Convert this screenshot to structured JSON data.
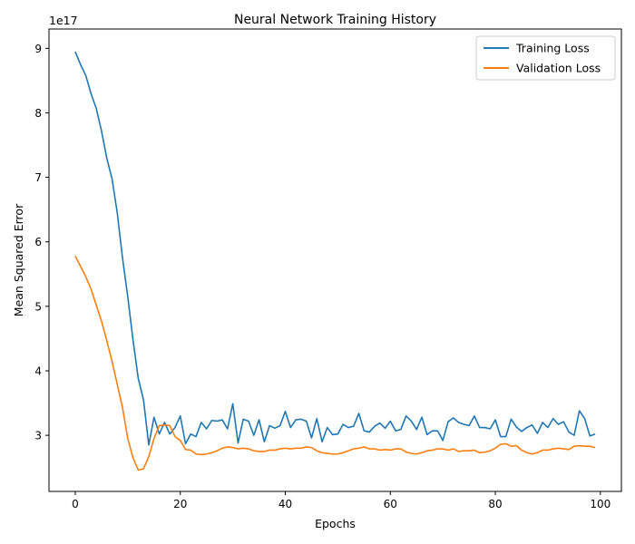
{
  "chart_data": {
    "type": "line",
    "title": "Neural Network Training History",
    "xlabel": "Epochs",
    "ylabel": "Mean Squared Error",
    "y_offset_label": "1e17",
    "y_scale": 1e+17,
    "xlim": [
      -5,
      104
    ],
    "ylim": [
      2.13,
      9.3
    ],
    "xticks": [
      0,
      20,
      40,
      60,
      80,
      100
    ],
    "yticks": [
      3,
      4,
      5,
      6,
      7,
      8,
      9
    ],
    "grid": false,
    "legend_position": "top-right",
    "x": [
      0,
      1,
      2,
      3,
      4,
      5,
      6,
      7,
      8,
      9,
      10,
      11,
      12,
      13,
      14,
      15,
      16,
      17,
      18,
      19,
      20,
      21,
      22,
      23,
      24,
      25,
      26,
      27,
      28,
      29,
      30,
      31,
      32,
      33,
      34,
      35,
      36,
      37,
      38,
      39,
      40,
      41,
      42,
      43,
      44,
      45,
      46,
      47,
      48,
      49,
      50,
      51,
      52,
      53,
      54,
      55,
      56,
      57,
      58,
      59,
      60,
      61,
      62,
      63,
      64,
      65,
      66,
      67,
      68,
      69,
      70,
      71,
      72,
      73,
      74,
      75,
      76,
      77,
      78,
      79,
      80,
      81,
      82,
      83,
      84,
      85,
      86,
      87,
      88,
      89,
      90,
      91,
      92,
      93,
      94,
      95,
      96,
      97,
      98,
      99
    ],
    "series": [
      {
        "name": "Training Loss",
        "color": "#1f77b4",
        "values": [
          8.95,
          8.75,
          8.58,
          8.3,
          8.07,
          7.72,
          7.3,
          6.98,
          6.45,
          5.75,
          5.15,
          4.48,
          3.88,
          3.55,
          2.85,
          3.28,
          3.02,
          3.2,
          3.02,
          3.12,
          3.3,
          2.87,
          3.02,
          2.98,
          3.2,
          3.1,
          3.23,
          3.22,
          3.24,
          3.1,
          3.49,
          2.88,
          3.25,
          3.22,
          3.0,
          3.24,
          2.9,
          3.15,
          3.11,
          3.15,
          3.37,
          3.12,
          3.24,
          3.25,
          3.22,
          2.96,
          3.26,
          2.9,
          3.12,
          3.01,
          3.02,
          3.17,
          3.12,
          3.14,
          3.34,
          3.07,
          3.05,
          3.14,
          3.19,
          3.11,
          3.22,
          3.07,
          3.09,
          3.3,
          3.22,
          3.09,
          3.28,
          3.01,
          3.07,
          3.07,
          2.92,
          3.21,
          3.27,
          3.2,
          3.17,
          3.15,
          3.3,
          3.12,
          3.12,
          3.1,
          3.24,
          2.98,
          2.98,
          3.25,
          3.13,
          3.06,
          3.12,
          3.16,
          3.03,
          3.2,
          3.12,
          3.26,
          3.17,
          3.21,
          3.05,
          3.0,
          3.38,
          3.26,
          2.99,
          3.02
        ]
      },
      {
        "name": "Validation Loss",
        "color": "#ff7f0e",
        "values": [
          5.78,
          5.62,
          5.46,
          5.27,
          5.02,
          4.77,
          4.47,
          4.15,
          3.79,
          3.43,
          2.95,
          2.65,
          2.46,
          2.48,
          2.67,
          2.95,
          3.15,
          3.16,
          3.15,
          2.98,
          2.92,
          2.78,
          2.77,
          2.71,
          2.7,
          2.71,
          2.73,
          2.76,
          2.8,
          2.82,
          2.81,
          2.79,
          2.8,
          2.79,
          2.76,
          2.75,
          2.75,
          2.77,
          2.77,
          2.79,
          2.8,
          2.79,
          2.8,
          2.8,
          2.82,
          2.81,
          2.76,
          2.73,
          2.72,
          2.71,
          2.71,
          2.73,
          2.76,
          2.79,
          2.8,
          2.82,
          2.79,
          2.79,
          2.77,
          2.78,
          2.77,
          2.79,
          2.79,
          2.74,
          2.72,
          2.71,
          2.73,
          2.76,
          2.77,
          2.79,
          2.79,
          2.77,
          2.79,
          2.75,
          2.76,
          2.76,
          2.77,
          2.73,
          2.74,
          2.76,
          2.8,
          2.86,
          2.87,
          2.83,
          2.84,
          2.77,
          2.73,
          2.71,
          2.73,
          2.77,
          2.77,
          2.79,
          2.8,
          2.79,
          2.78,
          2.83,
          2.84,
          2.83,
          2.83,
          2.81
        ]
      }
    ]
  }
}
